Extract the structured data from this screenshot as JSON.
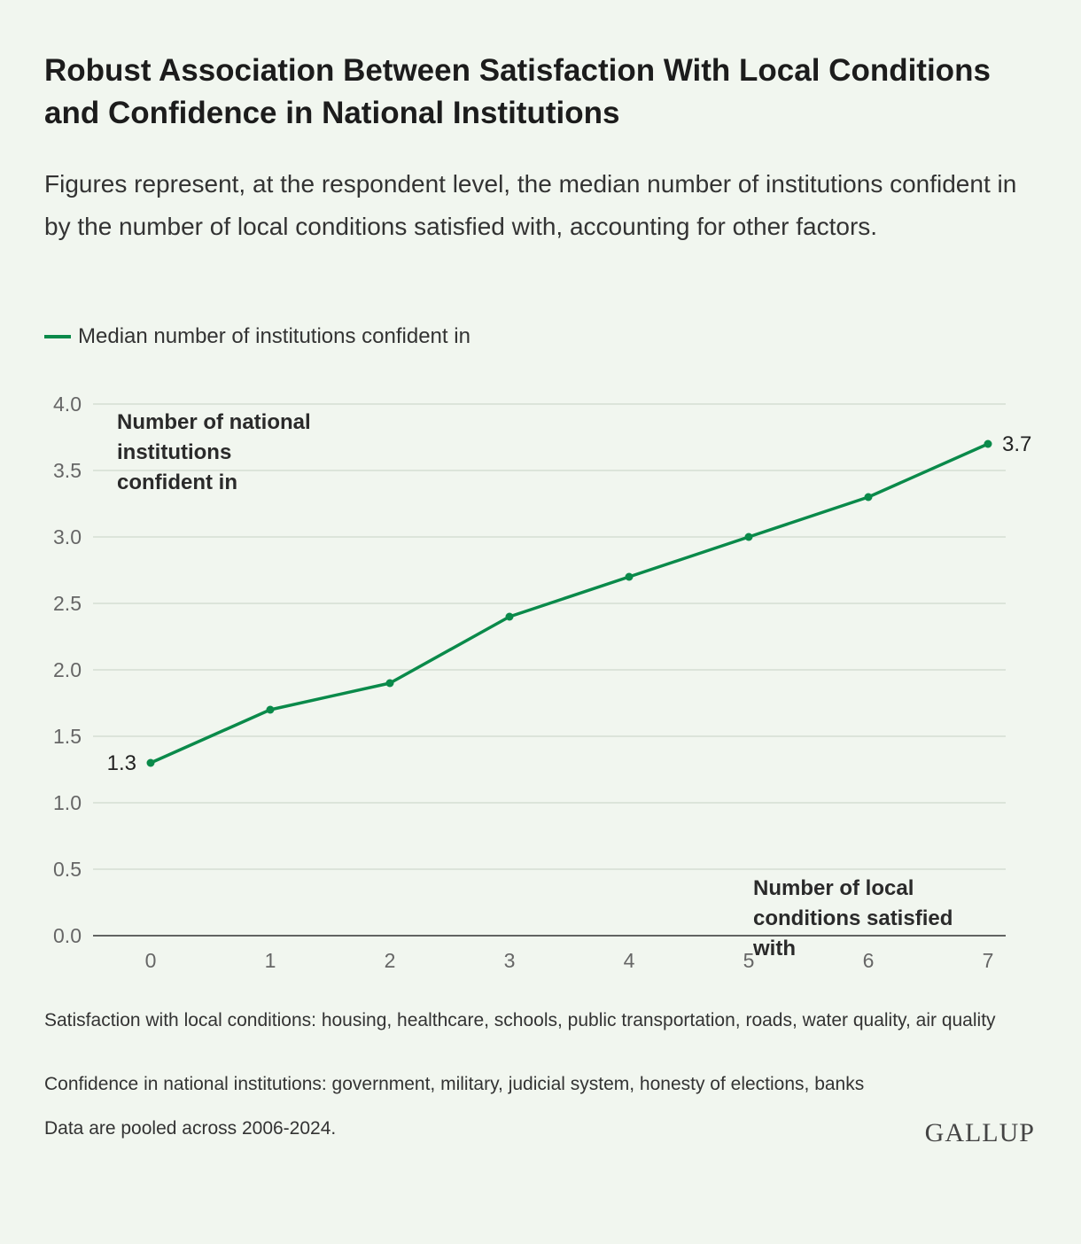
{
  "title": "Robust Association Between Satisfaction With Local Conditions and Confidence in National Institutions",
  "subtitle": "Figures represent, at the respondent level, the median number of institutions confident in by the number of local conditions satisfied with, accounting for other factors.",
  "chart_data": {
    "type": "line",
    "x": [
      0,
      1,
      2,
      3,
      4,
      5,
      6,
      7
    ],
    "x_tick_labels": [
      "0",
      "1",
      "2",
      "3",
      "4",
      "5",
      "6",
      "7"
    ],
    "series": [
      {
        "name": "Median number of institutions confident in",
        "values": [
          1.3,
          1.7,
          1.9,
          2.4,
          2.7,
          3.0,
          3.3,
          3.7
        ],
        "color": "#0a8a4a"
      }
    ],
    "data_labels": [
      {
        "index": 0,
        "text": "1.3"
      },
      {
        "index": 7,
        "text": "3.7"
      }
    ],
    "ylabel": "Number of national institutions confident in",
    "xlabel": "Number of local conditions satisfied with",
    "ylim": [
      0,
      4
    ],
    "y_tick_labels": [
      "0.0",
      "0.5",
      "1.0",
      "1.5",
      "2.0",
      "2.5",
      "3.0",
      "3.5",
      "4.0"
    ],
    "grid": true,
    "legend_placement": "top-left"
  },
  "notes": [
    "Satisfaction with local conditions: housing, healthcare, schools, public transportation, roads, water quality, air quality",
    "Confidence in national institutions: government, military, judicial system, honesty of elections, banks",
    "Data are pooled across 2006-2024."
  ],
  "logo": "GALLUP"
}
